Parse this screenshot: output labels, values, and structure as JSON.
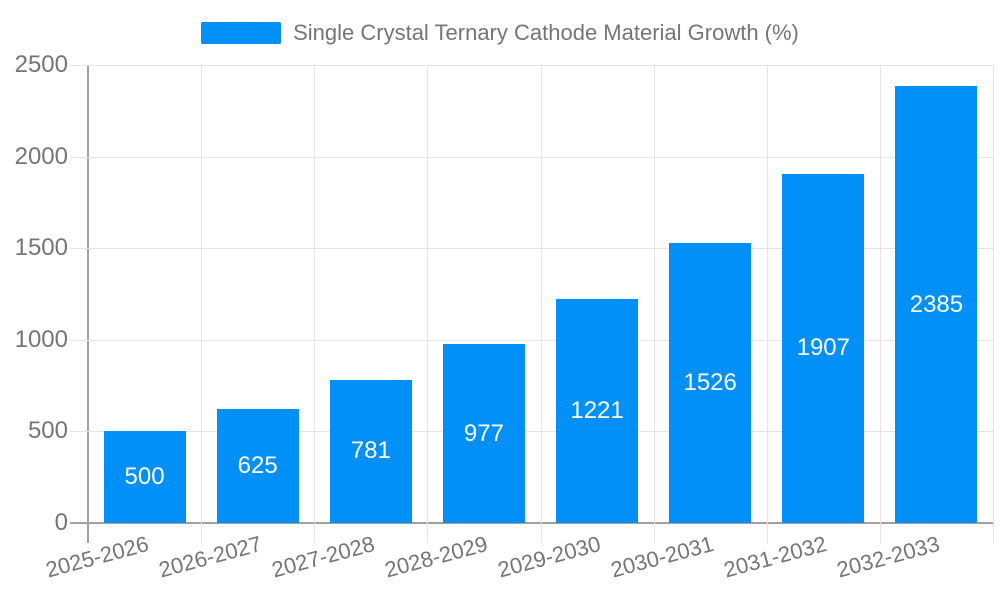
{
  "legend": {
    "label": "Single Crystal Ternary Cathode Material Growth (%)"
  },
  "colors": {
    "bar": "#0190F8",
    "axis_line": "#A0A0A0",
    "grid_line": "#E4E4E4",
    "tick_text": "#757575",
    "bar_label": "#FFFFFF",
    "background": "#FFFFFF"
  },
  "chart_data": {
    "type": "bar",
    "title": "Single Crystal Ternary Cathode Material Growth (%)",
    "categories": [
      "2025-2026",
      "2026-2027",
      "2027-2028",
      "2028-2029",
      "2029-2030",
      "2030-2031",
      "2031-2032",
      "2032-2033"
    ],
    "values": [
      500,
      625,
      781,
      977,
      1221,
      1526,
      1907,
      2385
    ],
    "xlabel": "",
    "ylabel": "",
    "ylim": [
      0,
      2500
    ],
    "yticks": [
      0,
      500,
      1000,
      1500,
      2000,
      2500
    ],
    "grid": true,
    "legend_position": "top",
    "bar_label_position": "inside-center",
    "x_label_rotation_deg": -15
  }
}
